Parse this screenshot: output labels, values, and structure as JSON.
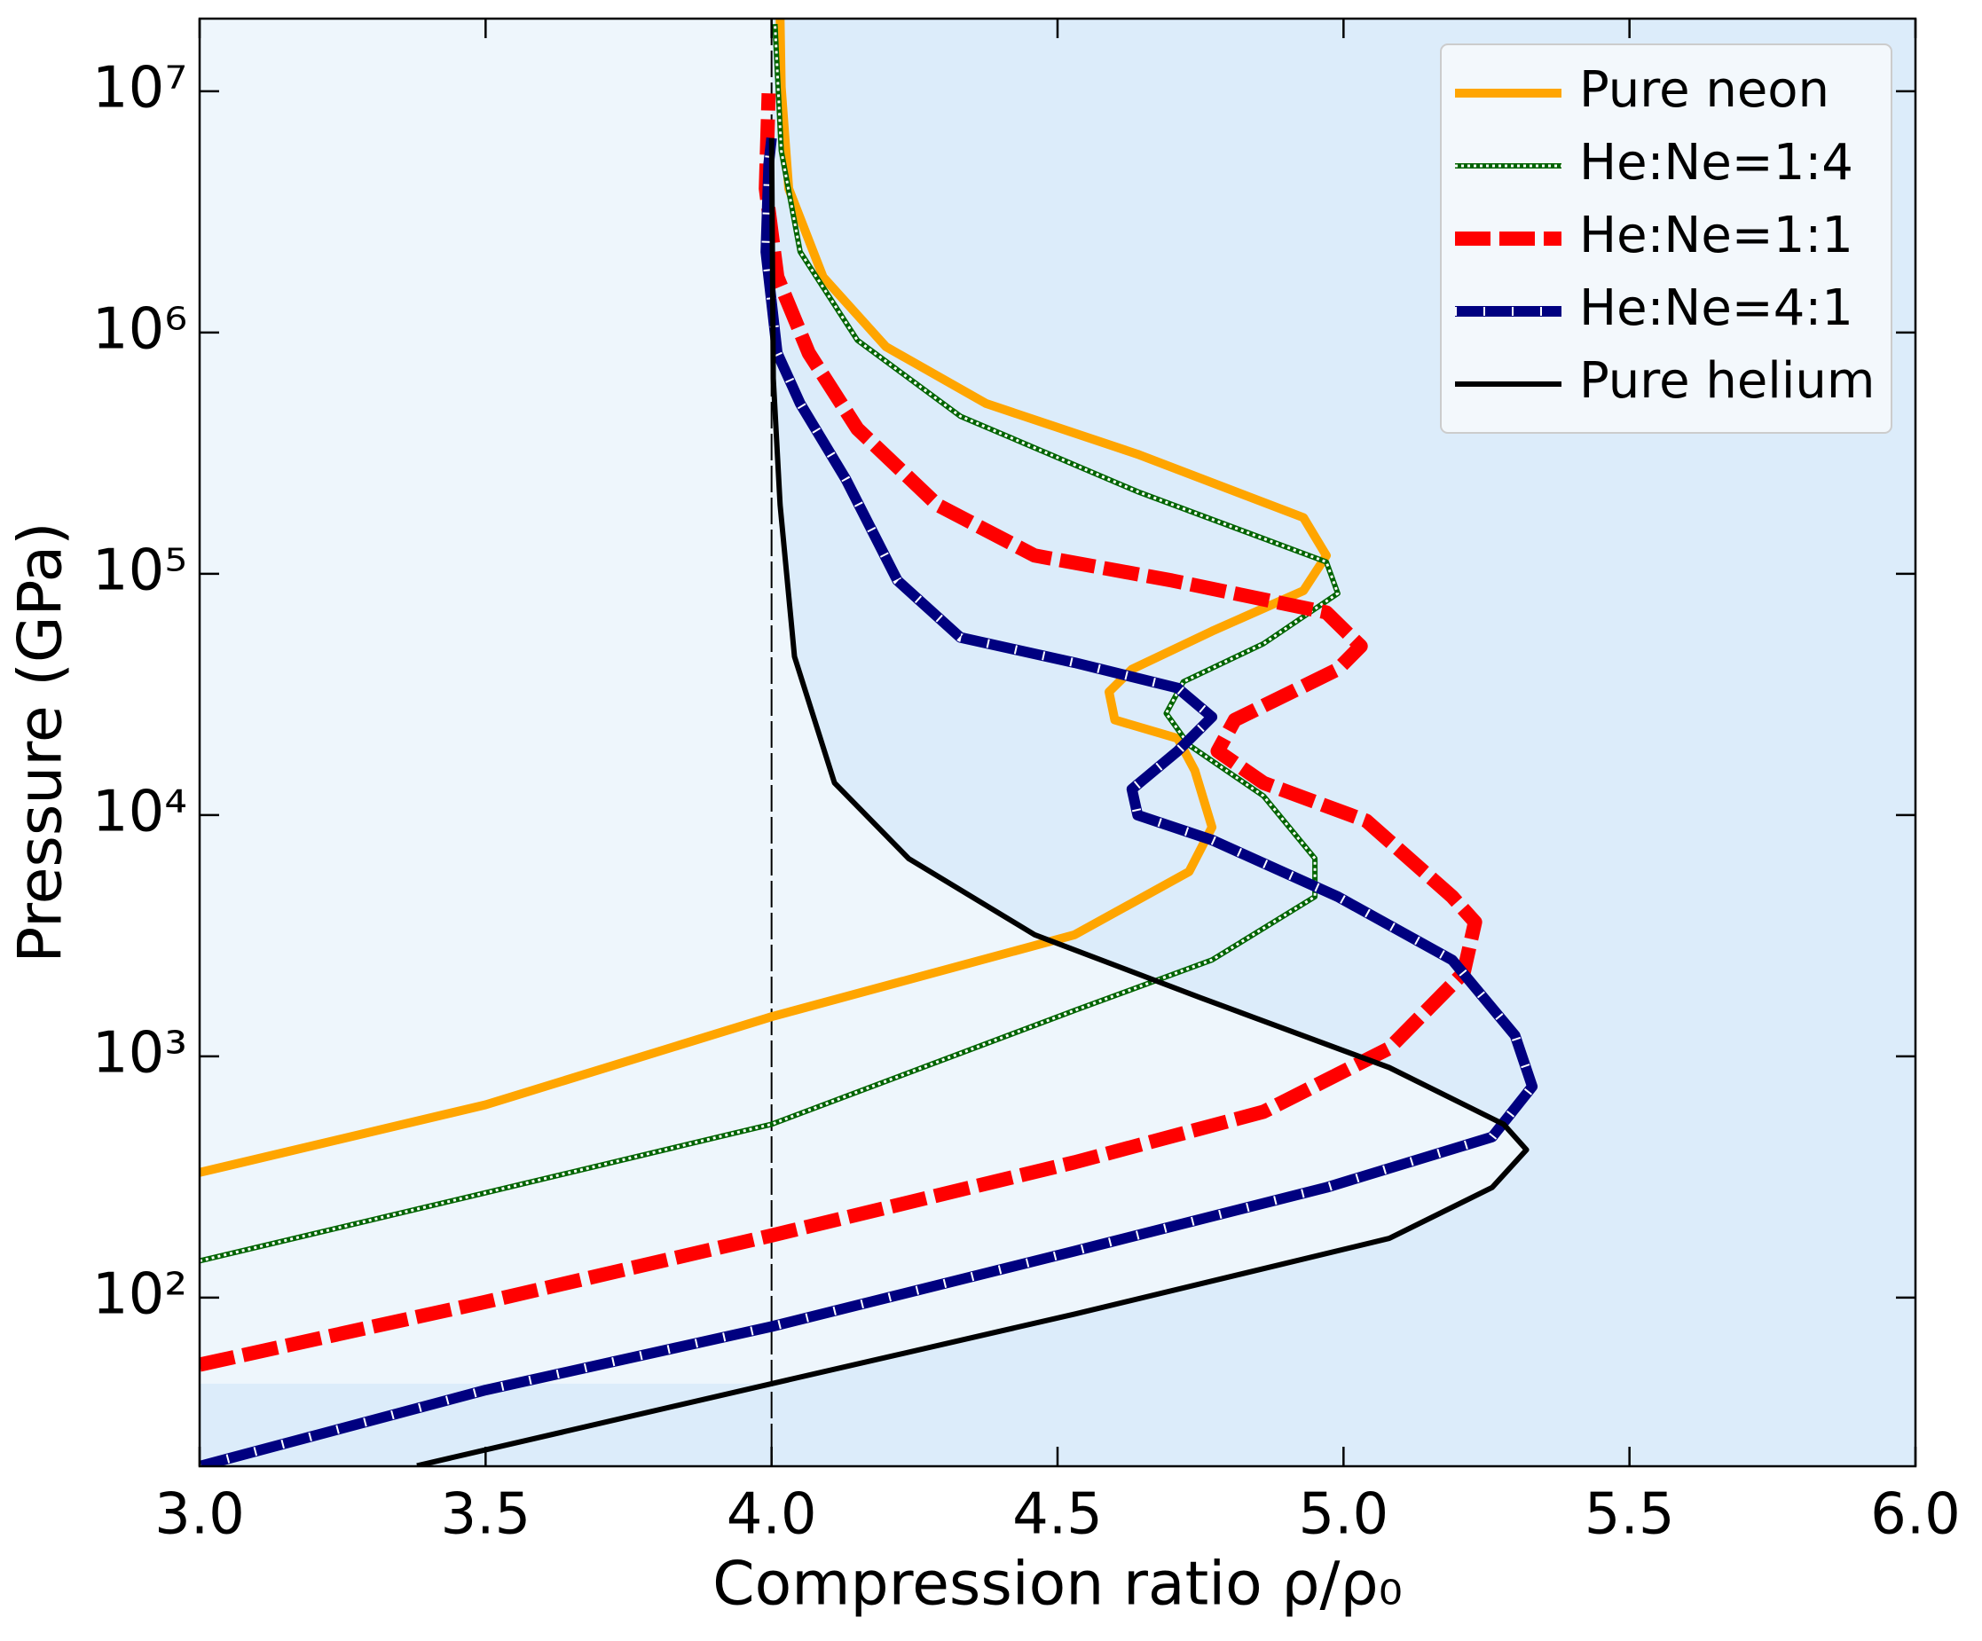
{
  "chart_data": {
    "type": "line",
    "xlabel": "Compression ratio ρ/ρ₀",
    "ylabel": "Pressure (GPa)",
    "xlim": [
      3,
      6
    ],
    "ylim": [
      20,
      20000000
    ],
    "ylog": true,
    "xticks": [
      {
        "value": 3,
        "label": "3.0"
      },
      {
        "value": 3.5,
        "label": "3.5"
      },
      {
        "value": 4,
        "label": "4.0"
      },
      {
        "value": 4.5,
        "label": "4.5"
      },
      {
        "value": 5,
        "label": "5.0"
      },
      {
        "value": 5.5,
        "label": "5.5"
      },
      {
        "value": 6,
        "label": "6.0"
      }
    ],
    "yticks": [
      {
        "value": 100,
        "label": "10²"
      },
      {
        "value": 1000,
        "label": "10³"
      },
      {
        "value": 10000,
        "label": "10⁴"
      },
      {
        "value": 100000,
        "label": "10⁵"
      },
      {
        "value": 1000000,
        "label": "10⁶"
      },
      {
        "value": 10000000,
        "label": "10⁷"
      }
    ],
    "vline": 4,
    "legend": "upper right",
    "series": [
      {
        "name": "Pure neon",
        "color": "#ffa500",
        "linestyle": "solid-thick",
        "x": [
          3.0,
          3.5,
          4.0,
          4.53,
          4.73,
          4.77,
          4.74,
          4.71,
          4.6,
          4.59,
          4.63,
          4.77,
          4.93,
          4.97,
          4.93,
          4.64,
          4.375,
          4.2,
          4.09,
          4.03,
          4.017,
          4.015
        ],
        "values": [
          330,
          630,
          1460,
          3190,
          5830,
          8900,
          15300,
          20800,
          24800,
          32400,
          40200,
          57800,
          85100,
          119000,
          171000,
          313000,
          508000,
          873000,
          1700000,
          3950000,
          10400000,
          20000000
        ]
      },
      {
        "name": "He:Ne=1:4",
        "color": "#006400",
        "linestyle": "dashdotdot",
        "x": [
          3.0,
          3.5,
          4.0,
          4.53,
          4.77,
          4.95,
          4.95,
          4.86,
          4.73,
          4.69,
          4.72,
          4.86,
          4.99,
          4.97,
          4.64,
          4.33,
          4.15,
          4.05,
          4.017,
          4.006
        ],
        "values": [
          142,
          272,
          523,
          1550,
          2510,
          4590,
          6610,
          12000,
          19500,
          26400,
          35700,
          51300,
          82900,
          112000,
          219000,
          450000,
          929000,
          2160000,
          5670000,
          19000000
        ]
      },
      {
        "name": "He:Ne=1:1",
        "color": "#ff0000",
        "linestyle": "dashed",
        "x": [
          3.0,
          3.5,
          4.0,
          4.53,
          4.86,
          5.08,
          5.21,
          5.23,
          5.19,
          5.04,
          4.86,
          4.78,
          4.81,
          4.99,
          5.03,
          4.97,
          4.7,
          4.46,
          4.29,
          4.15,
          4.065,
          4.01,
          3.99,
          3.995
        ],
        "values": [
          52.7,
          96,
          181,
          364,
          589,
          1080,
          2220,
          3600,
          4590,
          9460,
          13600,
          18400,
          24800,
          40200,
          50100,
          69200,
          93800,
          119000,
          193000,
          399000,
          822000,
          1700000,
          3950000,
          9800000
        ]
      },
      {
        "name": "He:Ne=4:1",
        "color": "#000080",
        "linestyle": "dashdot",
        "x": [
          3.0,
          3.5,
          4.0,
          4.53,
          4.97,
          5.26,
          5.33,
          5.3,
          5.19,
          4.99,
          4.77,
          4.64,
          4.63,
          4.71,
          4.77,
          4.71,
          4.53,
          4.33,
          4.22,
          4.13,
          4.05,
          4.01,
          3.99,
          3.995,
          4.0
        ],
        "values": [
          20,
          41.4,
          75.9,
          156,
          286,
          463,
          750,
          1220,
          2510,
          4590,
          7880,
          10000,
          12800,
          18400,
          25500,
          33600,
          42800,
          54500,
          93800,
          246000,
          508000,
          822000,
          2160000,
          5000000,
          6400000
        ]
      },
      {
        "name": "Pure helium",
        "color": "#000000",
        "linestyle": "solid",
        "x": [
          3.38,
          4.0,
          4.53,
          5.08,
          5.26,
          5.32,
          5.28,
          5.08,
          4.75,
          4.46,
          4.24,
          4.11,
          4.04,
          4.015,
          4.003,
          4.0
        ],
        "values": [
          20.1,
          44,
          85.5,
          176,
          286,
          410,
          523,
          899,
          1750,
          3190,
          6590,
          13600,
          45400,
          193000,
          646000,
          6400000
        ]
      }
    ]
  }
}
